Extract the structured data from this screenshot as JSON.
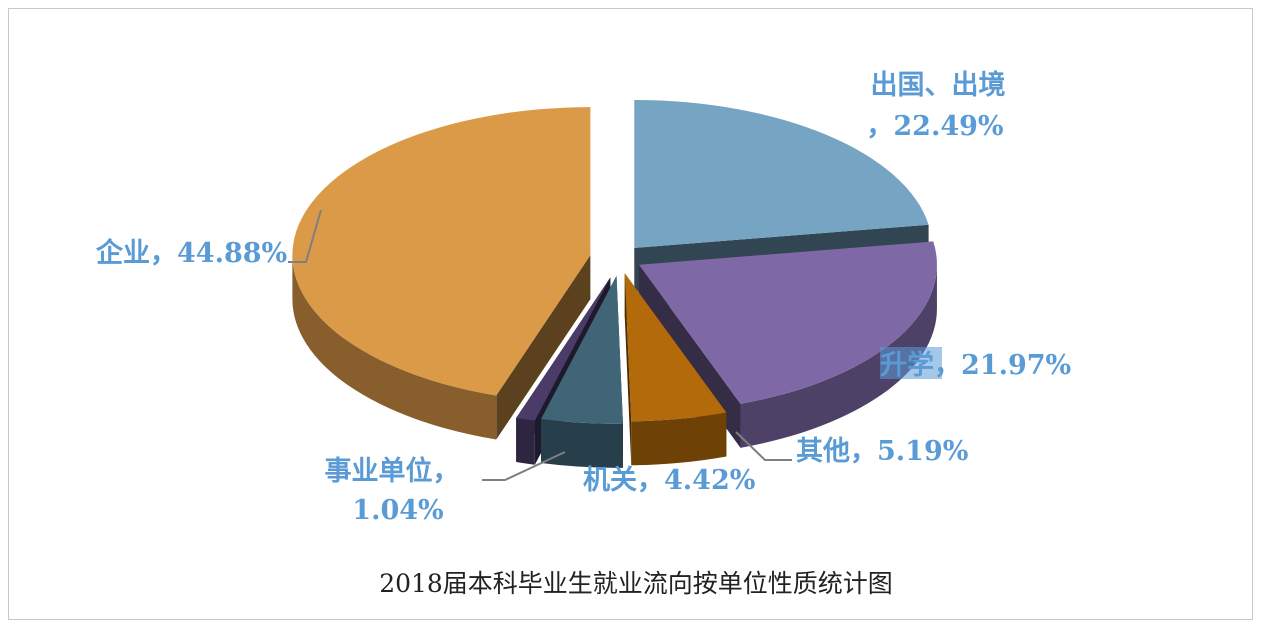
{
  "chart_data": {
    "type": "pie",
    "style": "3d-exploded",
    "title": "",
    "caption": "2018届本科毕业生就业流向按单位性质统计图",
    "slices": [
      {
        "name": "出国、出境",
        "value": 22.49,
        "label_line1": "出国、出境",
        "label_line2": "，22.49%",
        "color": "#76a5c4"
      },
      {
        "name": "升学",
        "value": 21.97,
        "label_line1": "升学",
        "label_line2": "，21.97%",
        "color": "#7e69a6"
      },
      {
        "name": "其他",
        "value": 5.19,
        "label_line1": "其他",
        "label_line2": "，5.19%",
        "color": "#b26a0a"
      },
      {
        "name": "机关",
        "value": 4.42,
        "label_line1": "机关",
        "label_line2": "，4.42%",
        "color": "#3f6577"
      },
      {
        "name": "事业单位",
        "value": 1.04,
        "label_line1": "事业单位，",
        "label_line2": "1.04%",
        "color": "#4a3b68"
      },
      {
        "name": "企业",
        "value": 44.88,
        "label_line1": "企业",
        "label_line2": "，44.88%",
        "color": "#db9a47"
      }
    ]
  }
}
